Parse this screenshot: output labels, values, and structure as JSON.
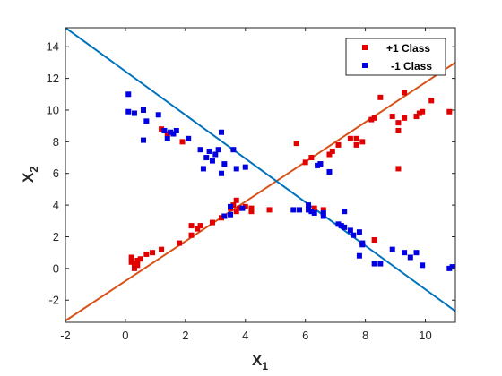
{
  "chart_data": {
    "type": "scatter",
    "xlabel": {
      "main": "X",
      "sub": "1"
    },
    "ylabel": {
      "main": "X",
      "sub": "2"
    },
    "xlim": [
      -2,
      11
    ],
    "ylim": [
      -3.4,
      15.2
    ],
    "xticks": [
      -2,
      0,
      2,
      4,
      6,
      8,
      10
    ],
    "yticks": [
      -2,
      0,
      2,
      4,
      6,
      8,
      10,
      12,
      14
    ],
    "grid": false,
    "legend_position": "top-right",
    "series": [
      {
        "name": "+1 Class",
        "color": "#e00000",
        "marker": "square",
        "points": [
          [
            0.2,
            0.7
          ],
          [
            0.3,
            0.3
          ],
          [
            0.4,
            0.5
          ],
          [
            0.5,
            0.6
          ],
          [
            0.3,
            0.0
          ],
          [
            0.2,
            0.4
          ],
          [
            0.4,
            0.2
          ],
          [
            0.7,
            0.9
          ],
          [
            0.9,
            1.0
          ],
          [
            1.2,
            1.2
          ],
          [
            1.8,
            1.6
          ],
          [
            2.2,
            2.1
          ],
          [
            2.4,
            2.5
          ],
          [
            2.5,
            2.7
          ],
          [
            2.2,
            2.7
          ],
          [
            2.9,
            2.9
          ],
          [
            3.2,
            3.2
          ],
          [
            3.3,
            3.3
          ],
          [
            3.5,
            3.8
          ],
          [
            3.6,
            4.0
          ],
          [
            3.7,
            3.6
          ],
          [
            3.8,
            3.8
          ],
          [
            3.7,
            4.3
          ],
          [
            4.0,
            3.9
          ],
          [
            4.2,
            3.6
          ],
          [
            4.2,
            3.8
          ],
          [
            4.8,
            3.7
          ],
          [
            1.2,
            8.8
          ],
          [
            1.4,
            8.5
          ],
          [
            1.9,
            8.0
          ],
          [
            5.7,
            7.9
          ],
          [
            6.0,
            6.7
          ],
          [
            6.2,
            7.0
          ],
          [
            6.5,
            6.6
          ],
          [
            6.8,
            7.2
          ],
          [
            6.9,
            7.4
          ],
          [
            7.1,
            7.8
          ],
          [
            7.5,
            8.2
          ],
          [
            7.7,
            7.8
          ],
          [
            7.7,
            8.2
          ],
          [
            7.9,
            8.0
          ],
          [
            8.2,
            9.4
          ],
          [
            8.3,
            9.5
          ],
          [
            8.5,
            10.8
          ],
          [
            8.9,
            9.6
          ],
          [
            9.1,
            9.2
          ],
          [
            9.1,
            8.7
          ],
          [
            9.3,
            9.5
          ],
          [
            9.3,
            11.1
          ],
          [
            9.7,
            9.6
          ],
          [
            9.8,
            9.8
          ],
          [
            9.9,
            9.9
          ],
          [
            10.2,
            10.6
          ],
          [
            10.8,
            9.9
          ],
          [
            11.1,
            9.7
          ],
          [
            9.1,
            6.3
          ],
          [
            6.3,
            3.8
          ],
          [
            6.6,
            3.7
          ],
          [
            8.3,
            1.8
          ]
        ]
      },
      {
        "name": "-1 Class",
        "color": "#0000e0",
        "marker": "square",
        "points": [
          [
            0.1,
            11.0
          ],
          [
            0.1,
            9.9
          ],
          [
            0.3,
            9.8
          ],
          [
            0.6,
            10.0
          ],
          [
            0.7,
            9.3
          ],
          [
            0.6,
            8.1
          ],
          [
            1.1,
            9.7
          ],
          [
            1.3,
            8.7
          ],
          [
            1.4,
            8.2
          ],
          [
            1.5,
            8.6
          ],
          [
            1.6,
            8.5
          ],
          [
            1.7,
            8.7
          ],
          [
            2.1,
            8.2
          ],
          [
            2.5,
            7.5
          ],
          [
            2.6,
            6.3
          ],
          [
            2.7,
            7.0
          ],
          [
            2.8,
            7.4
          ],
          [
            2.9,
            6.8
          ],
          [
            3.0,
            7.2
          ],
          [
            3.1,
            7.5
          ],
          [
            3.2,
            8.6
          ],
          [
            3.3,
            6.6
          ],
          [
            3.2,
            6.0
          ],
          [
            3.6,
            7.5
          ],
          [
            3.7,
            6.3
          ],
          [
            4.0,
            6.4
          ],
          [
            3.9,
            3.8
          ],
          [
            3.5,
            3.9
          ],
          [
            3.3,
            3.3
          ],
          [
            3.5,
            3.4
          ],
          [
            5.6,
            3.7
          ],
          [
            5.8,
            3.7
          ],
          [
            6.1,
            3.7
          ],
          [
            6.1,
            4.0
          ],
          [
            6.2,
            3.6
          ],
          [
            6.3,
            3.5
          ],
          [
            6.4,
            6.5
          ],
          [
            6.5,
            6.6
          ],
          [
            6.6,
            3.5
          ],
          [
            6.6,
            3.3
          ],
          [
            6.8,
            6.1
          ],
          [
            7.1,
            2.8
          ],
          [
            7.2,
            2.7
          ],
          [
            7.3,
            2.6
          ],
          [
            7.3,
            3.6
          ],
          [
            7.5,
            2.4
          ],
          [
            7.6,
            2.1
          ],
          [
            7.9,
            1.5
          ],
          [
            7.9,
            1.6
          ],
          [
            7.8,
            2.3
          ],
          [
            8.3,
            0.3
          ],
          [
            8.5,
            0.3
          ],
          [
            8.9,
            1.2
          ],
          [
            9.3,
            1.0
          ],
          [
            9.5,
            0.7
          ],
          [
            9.7,
            1.0
          ],
          [
            9.9,
            0.2
          ],
          [
            10.8,
            0.0
          ],
          [
            10.9,
            0.1
          ],
          [
            7.8,
            0.8
          ]
        ]
      }
    ],
    "lines": [
      {
        "color": "#d85218",
        "from": [
          -2,
          -3.3
        ],
        "to": [
          11,
          13.0
        ]
      },
      {
        "color": "#0072bd",
        "from": [
          -2,
          15.2
        ],
        "to": [
          11,
          -2.7
        ]
      }
    ]
  }
}
